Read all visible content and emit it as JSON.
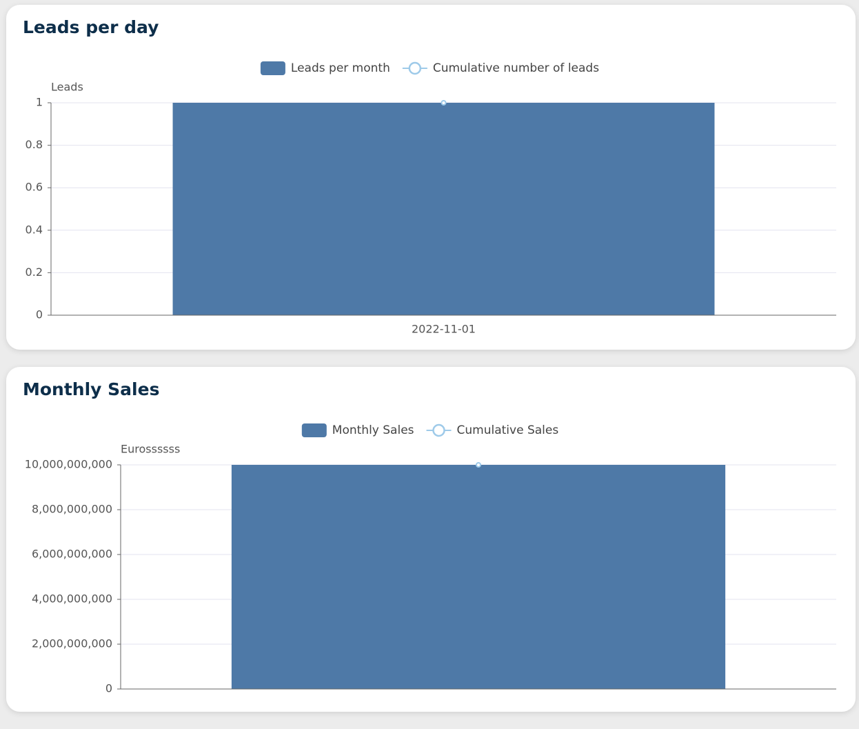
{
  "chart_data": [
    {
      "type": "bar",
      "title": "Leads per day",
      "y_label": "Leads",
      "categories": [
        "2022-11-01"
      ],
      "series": [
        {
          "name": "Leads per month",
          "type": "bar",
          "color": "#4e79a7",
          "values": [
            1
          ]
        },
        {
          "name": "Cumulative number of leads",
          "type": "line",
          "color": "#9ecae9",
          "values": [
            1
          ]
        }
      ],
      "ylim": [
        0,
        1
      ],
      "yticks": [
        0,
        0.2,
        0.4,
        0.6,
        0.8,
        1
      ],
      "grid": true,
      "legend": "top"
    },
    {
      "type": "bar",
      "title": "Monthly Sales",
      "y_label": "Eurossssss",
      "categories": [
        null
      ],
      "series": [
        {
          "name": "Monthly Sales",
          "type": "bar",
          "color": "#4e79a7",
          "values": [
            10000000000
          ]
        },
        {
          "name": "Cumulative Sales",
          "type": "line",
          "color": "#9ecae9",
          "values": [
            10000000000
          ]
        }
      ],
      "ylim": [
        0,
        10000000000
      ],
      "yticks": [
        0,
        {
          "value": 2000000000,
          "label": "2,000,000,000"
        },
        {
          "value": 4000000000,
          "label": "4,000,000,000"
        },
        {
          "value": 6000000000,
          "label": "6,000,000,000"
        },
        {
          "value": 8000000000,
          "label": "8,000,000,000"
        },
        {
          "value": 10000000000,
          "label": "10,000,000,000"
        }
      ],
      "grid": true,
      "legend": "top"
    }
  ]
}
